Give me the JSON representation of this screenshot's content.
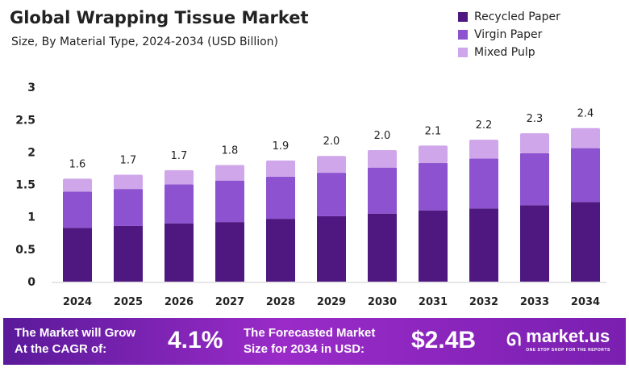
{
  "chart_data": {
    "type": "bar",
    "stacked": true,
    "title": "Global Wrapping Tissue Market",
    "subtitle": "Size, By Material Type, 2024-2034 (USD Billion)",
    "categories": [
      "2024",
      "2025",
      "2026",
      "2027",
      "2028",
      "2029",
      "2030",
      "2031",
      "2032",
      "2033",
      "2034"
    ],
    "series": [
      {
        "name": "Recycled Paper",
        "color": "#4e1880",
        "values": [
          0.83,
          0.86,
          0.9,
          0.92,
          0.97,
          1.01,
          1.05,
          1.1,
          1.13,
          1.18,
          1.23
        ]
      },
      {
        "name": "Virgin Paper",
        "color": "#8c52cf",
        "values": [
          0.56,
          0.57,
          0.6,
          0.64,
          0.65,
          0.67,
          0.71,
          0.73,
          0.77,
          0.8,
          0.83
        ]
      },
      {
        "name": "Mixed Pulp",
        "color": "#cfa6ea",
        "values": [
          0.2,
          0.22,
          0.22,
          0.24,
          0.25,
          0.26,
          0.27,
          0.27,
          0.29,
          0.31,
          0.31
        ]
      }
    ],
    "totals_labels": [
      "1.6",
      "1.7",
      "1.7",
      "1.8",
      "1.9",
      "2.0",
      "2.0",
      "2.1",
      "2.2",
      "2.3",
      "2.4"
    ],
    "yticks": [
      "0",
      "0.5",
      "1",
      "1.5",
      "2",
      "2.5",
      "3"
    ],
    "ylim": [
      0,
      3
    ],
    "grid": false,
    "legend": "top-right"
  },
  "banner": {
    "cagr_text_1": "The Market will Grow",
    "cagr_text_2": "At the CAGR of:",
    "cagr_value": "4.1%",
    "forecast_text_1": "The Forecasted Market",
    "forecast_text_2": "Size for 2034 in USD:",
    "forecast_value": "$2.4B",
    "logo_text": "market.us",
    "logo_tagline": "ONE STOP SHOP FOR THE REPORTS"
  }
}
